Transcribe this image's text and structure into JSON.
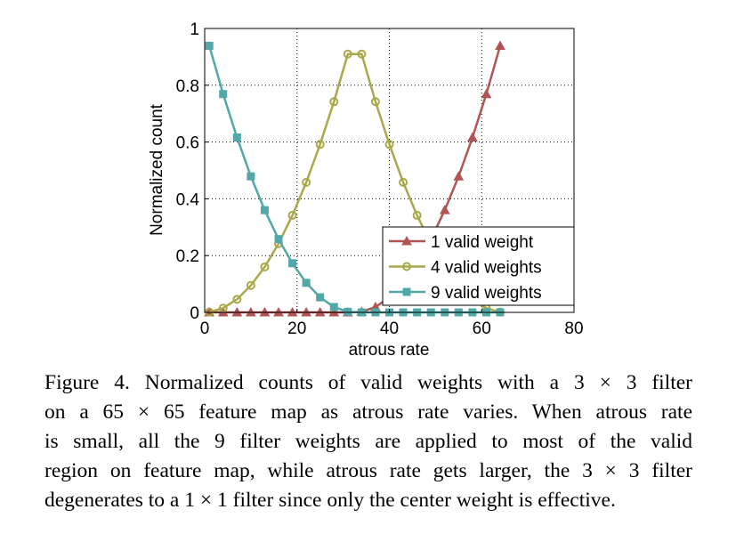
{
  "chart_data": {
    "type": "line",
    "xlabel": "atrous rate",
    "ylabel": "Normalized count",
    "xlim": [
      0,
      80
    ],
    "ylim": [
      0,
      1
    ],
    "xticks": [
      "0",
      "20",
      "40",
      "60",
      "80"
    ],
    "yticks": [
      "0",
      "0.2",
      "0.4",
      "0.6",
      "0.8",
      "1"
    ],
    "grid": true,
    "legend_position": "bottom-right",
    "x": [
      1,
      4,
      7,
      10,
      13,
      16,
      19,
      22,
      25,
      28,
      31,
      34,
      37,
      40,
      43,
      46,
      49,
      52,
      55,
      58,
      61,
      64
    ],
    "series": [
      {
        "name": "1 valid weight",
        "color": "#b05454",
        "marker": "triangle",
        "values": [
          0,
          0,
          0,
          0,
          0,
          0,
          0,
          0,
          0,
          0,
          0,
          0.002,
          0.019,
          0.053,
          0.104,
          0.173,
          0.258,
          0.36,
          0.479,
          0.616,
          0.769,
          0.939
        ]
      },
      {
        "name": "4 valid weights",
        "color": "#a9a94c",
        "marker": "circle",
        "values": [
          0.001,
          0.015,
          0.046,
          0.095,
          0.16,
          0.242,
          0.342,
          0.458,
          0.592,
          0.742,
          0.91,
          0.91,
          0.742,
          0.592,
          0.458,
          0.342,
          0.242,
          0.16,
          0.095,
          0.046,
          0.015,
          0.001
        ]
      },
      {
        "name": "9 valid weights",
        "color": "#52a8a8",
        "marker": "square",
        "values": [
          0.939,
          0.769,
          0.616,
          0.479,
          0.36,
          0.258,
          0.173,
          0.104,
          0.053,
          0.019,
          0.002,
          0,
          0,
          0,
          0,
          0,
          0,
          0,
          0,
          0,
          0,
          0
        ]
      }
    ]
  },
  "caption": {
    "lines": [
      "Figure 4. Normalized counts of valid weights with a 3 × 3 filter",
      "on a 65 × 65 feature map as atrous rate varies. When atrous rate",
      "is small, all the 9 filter weights are applied to most of the valid",
      "region on feature map, while atrous rate gets larger, the 3 × 3 filter",
      "degenerates to a 1 × 1 filter since only the center weight is effective."
    ]
  }
}
